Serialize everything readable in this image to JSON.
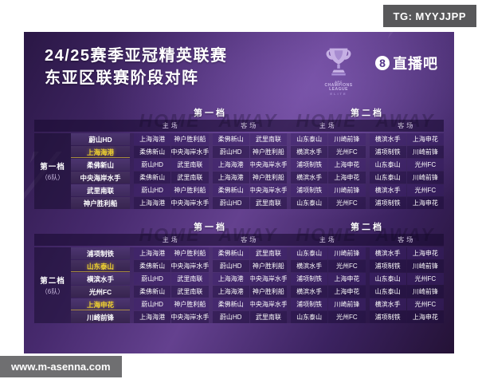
{
  "watermarks": {
    "top_right": "TG: MYYJJPP",
    "bottom_left": "www.m-asenna.com"
  },
  "header": {
    "title_line1": "24/25赛季亚冠精英联赛",
    "title_line2": "东亚区联赛阶段对阵",
    "logo_badge_number": "8",
    "logo_badge": "直播吧",
    "trophy_caption": [
      "AFC",
      "CHAMPIONS",
      "LEAGUE",
      "ELITE"
    ]
  },
  "colors": {
    "poster_purple": "#472a6e",
    "panel_dark": "#1a0c32",
    "highlight_yellow": "#f2d430",
    "badge_gray": "#58585a"
  },
  "tables": [
    {
      "tier_label": "第一档",
      "tier_sub": "（6队）",
      "group_headers": [
        "第一档",
        "第二档"
      ],
      "sub_headers": [
        "主场",
        "客场",
        "主场",
        "客场"
      ],
      "ghost_text": [
        "HOME",
        "AWAY",
        "HOME",
        "AWAY"
      ],
      "rows": [
        {
          "team": "蔚山HD",
          "highlight": false,
          "cells": [
            "上海海港",
            "神户胜利船",
            "柔佛新山",
            "武里南联",
            "山东泰山",
            "川崎前锋",
            "横滨水手",
            "上海申花"
          ]
        },
        {
          "team": "上海海港",
          "highlight": true,
          "cells": [
            "柔佛新山",
            "中央海岸水手",
            "蔚山HD",
            "神户胜利船",
            "横滨水手",
            "光州FC",
            "浦项制铁",
            "川崎前锋"
          ]
        },
        {
          "team": "柔佛新山",
          "highlight": false,
          "cells": [
            "蔚山HD",
            "武里南联",
            "上海海港",
            "中央海岸水手",
            "浦项制铁",
            "上海申花",
            "山东泰山",
            "光州FC"
          ]
        },
        {
          "team": "中央海岸水手",
          "highlight": false,
          "cells": [
            "柔佛新山",
            "武里南联",
            "上海海港",
            "神户胜利船",
            "横滨水手",
            "上海申花",
            "山东泰山",
            "川崎前锋"
          ]
        },
        {
          "team": "武里南联",
          "highlight": false,
          "cells": [
            "蔚山HD",
            "神户胜利船",
            "柔佛新山",
            "中央海岸水手",
            "浦项制铁",
            "川崎前锋",
            "横滨水手",
            "光州FC"
          ]
        },
        {
          "team": "神户胜利船",
          "highlight": false,
          "cells": [
            "上海海港",
            "中央海岸水手",
            "蔚山HD",
            "武里南联",
            "山东泰山",
            "光州FC",
            "浦项制铁",
            "上海申花"
          ]
        }
      ]
    },
    {
      "tier_label": "第二档",
      "tier_sub": "（6队）",
      "group_headers": [
        "第一档",
        "第二档"
      ],
      "sub_headers": [
        "主场",
        "客场",
        "主场",
        "客场"
      ],
      "ghost_text": [
        "HOME",
        "AWAY",
        "HOME",
        "AWAY"
      ],
      "rows": [
        {
          "team": "浦项制铁",
          "highlight": false,
          "cells": [
            "上海海港",
            "神户胜利船",
            "柔佛新山",
            "武里南联",
            "山东泰山",
            "川崎前锋",
            "横滨水手",
            "上海申花"
          ]
        },
        {
          "team": "山东泰山",
          "highlight": true,
          "cells": [
            "柔佛新山",
            "中央海岸水手",
            "蔚山HD",
            "神户胜利船",
            "横滨水手",
            "光州FC",
            "浦项制铁",
            "川崎前锋"
          ]
        },
        {
          "team": "横滨水手",
          "highlight": false,
          "cells": [
            "蔚山HD",
            "武里南联",
            "上海海港",
            "中央海岸水手",
            "浦项制铁",
            "上海申花",
            "山东泰山",
            "光州FC"
          ]
        },
        {
          "team": "光州FC",
          "highlight": false,
          "cells": [
            "柔佛新山",
            "武里南联",
            "上海海港",
            "神户胜利船",
            "横滨水手",
            "上海申花",
            "山东泰山",
            "川崎前锋"
          ]
        },
        {
          "team": "上海申花",
          "highlight": true,
          "cells": [
            "蔚山HD",
            "神户胜利船",
            "柔佛新山",
            "中央海岸水手",
            "浦项制铁",
            "川崎前锋",
            "横滨水手",
            "光州FC"
          ]
        },
        {
          "team": "川崎前锋",
          "highlight": false,
          "cells": [
            "上海海港",
            "中央海岸水手",
            "蔚山HD",
            "武里南联",
            "山东泰山",
            "光州FC",
            "浦项制铁",
            "上海申花"
          ]
        }
      ]
    }
  ]
}
